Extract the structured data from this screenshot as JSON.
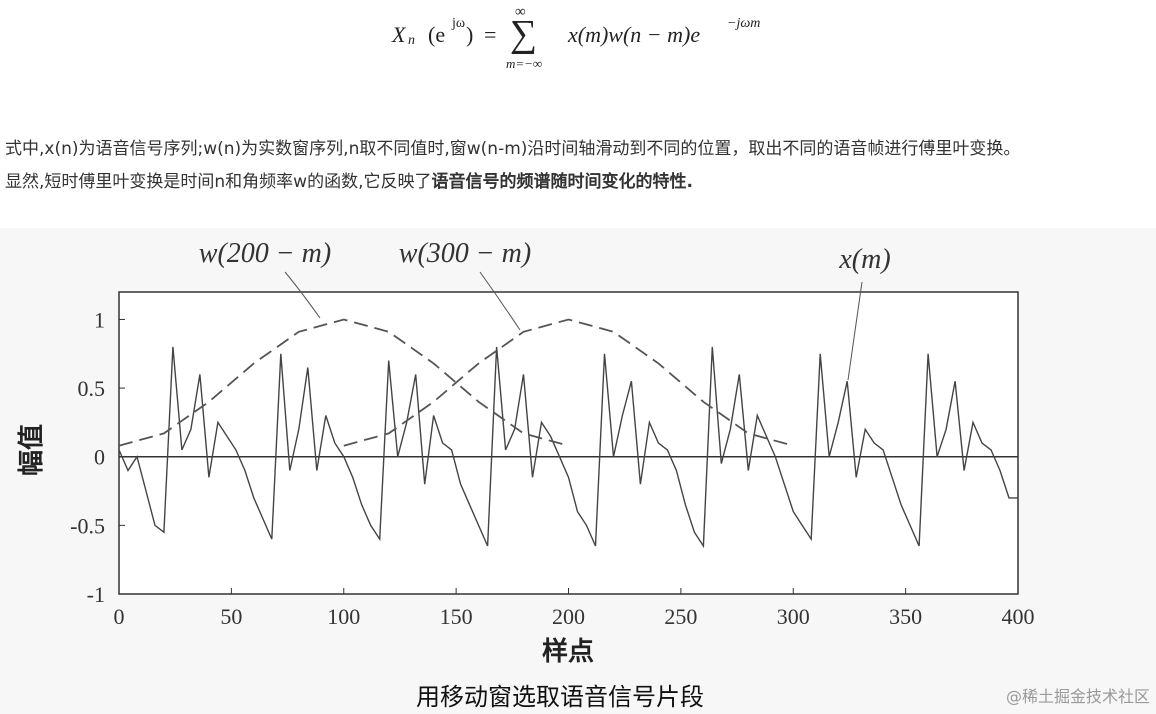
{
  "formula": {
    "lhs": "X",
    "lhs_sub": "n",
    "lhs_arg": "(e",
    "lhs_arg_sup": "jω",
    "lhs_arg_close": ")",
    "eq": "=",
    "sum": "∑",
    "sum_top": "∞",
    "sum_bottom": "m=−∞",
    "term": "x(m)w(n − m)e",
    "term_sup": "−jωm"
  },
  "paragraph": {
    "line1": "式中,x(n)为语音信号序列;w(n)为实数窗序列,n取不同值时,窗w(n-m)沿时间轴滑动到不同的位置，取出不同的语音帧进行傅里叶变换。",
    "line2": "显然,短时傅里叶变换是时间n和角频率w的函数,它反映了",
    "line2_bold": "语音信号的频谱随时间变化的特性."
  },
  "chart_data": {
    "type": "line",
    "ylabel": "幅值",
    "xlabel": "样点",
    "xlim": [
      0,
      400
    ],
    "xticks": [
      0,
      50,
      100,
      150,
      200,
      250,
      300,
      350,
      400
    ],
    "ylim": [
      -1,
      1.2
    ],
    "yticks": [
      -1,
      -0.5,
      0,
      0.5,
      1
    ],
    "hline": 0,
    "annotations": [
      "w(200 − m)",
      "w(300 − m)",
      "x(m)"
    ],
    "series": [
      {
        "style": "solid",
        "color": "#444444",
        "x": [
          0,
          4,
          8,
          12,
          16,
          20,
          24,
          28,
          32,
          36,
          40,
          44,
          48,
          52,
          56,
          60,
          64,
          68,
          72,
          76,
          80,
          84,
          88,
          92,
          96,
          100,
          104,
          108,
          112,
          116,
          120,
          124,
          128,
          132,
          136,
          140,
          144,
          148,
          152,
          156,
          160,
          164,
          168,
          172,
          176,
          180,
          184,
          188,
          192,
          196,
          200,
          204,
          208,
          212,
          216,
          220,
          224,
          228,
          232,
          236,
          240,
          244,
          248,
          252,
          256,
          260,
          264,
          268,
          272,
          276,
          280,
          284,
          288,
          292,
          296,
          300,
          304,
          308,
          312,
          316,
          320,
          324,
          328,
          332,
          336,
          340,
          344,
          348,
          352,
          356,
          360,
          364,
          368,
          372,
          376,
          380,
          384,
          388,
          392,
          396,
          400
        ],
        "values": [
          0.05,
          -0.1,
          0.0,
          -0.25,
          -0.5,
          -0.55,
          0.8,
          0.05,
          0.2,
          0.6,
          -0.15,
          0.25,
          0.15,
          0.05,
          -0.1,
          -0.3,
          -0.45,
          -0.6,
          0.75,
          -0.1,
          0.2,
          0.65,
          -0.1,
          0.3,
          0.1,
          0.0,
          -0.15,
          -0.35,
          -0.5,
          -0.6,
          0.7,
          0.0,
          0.25,
          0.6,
          -0.2,
          0.3,
          0.1,
          0.05,
          -0.2,
          -0.35,
          -0.5,
          -0.65,
          0.8,
          0.05,
          0.2,
          0.6,
          -0.15,
          0.25,
          0.15,
          0.0,
          -0.15,
          -0.4,
          -0.5,
          -0.65,
          0.75,
          0.0,
          0.3,
          0.55,
          -0.2,
          0.25,
          0.1,
          0.05,
          -0.1,
          -0.35,
          -0.55,
          -0.65,
          0.8,
          -0.05,
          0.2,
          0.6,
          -0.1,
          0.3,
          0.15,
          0.0,
          -0.2,
          -0.4,
          -0.5,
          -0.6,
          0.75,
          0.0,
          0.25,
          0.55,
          -0.15,
          0.2,
          0.1,
          0.05,
          -0.15,
          -0.35,
          -0.5,
          -0.65,
          0.75,
          0.0,
          0.2,
          0.55,
          -0.1,
          0.25,
          0.1,
          0.05,
          -0.1,
          -0.3,
          -0.3
        ]
      },
      {
        "style": "dashed",
        "color": "#555555",
        "x": [
          0,
          20,
          40,
          60,
          80,
          100,
          120,
          140,
          160,
          180,
          200
        ],
        "values": [
          0.08,
          0.17,
          0.4,
          0.68,
          0.91,
          1.0,
          0.91,
          0.68,
          0.4,
          0.17,
          0.08
        ]
      },
      {
        "style": "dashed",
        "color": "#555555",
        "x": [
          100,
          120,
          140,
          160,
          180,
          200,
          220,
          240,
          260,
          280,
          300
        ],
        "values": [
          0.08,
          0.17,
          0.4,
          0.68,
          0.91,
          1.0,
          0.91,
          0.68,
          0.4,
          0.17,
          0.08
        ]
      }
    ]
  },
  "caption": "用移动窗选取语音信号片段",
  "watermark": "@稀土掘金技术社区"
}
